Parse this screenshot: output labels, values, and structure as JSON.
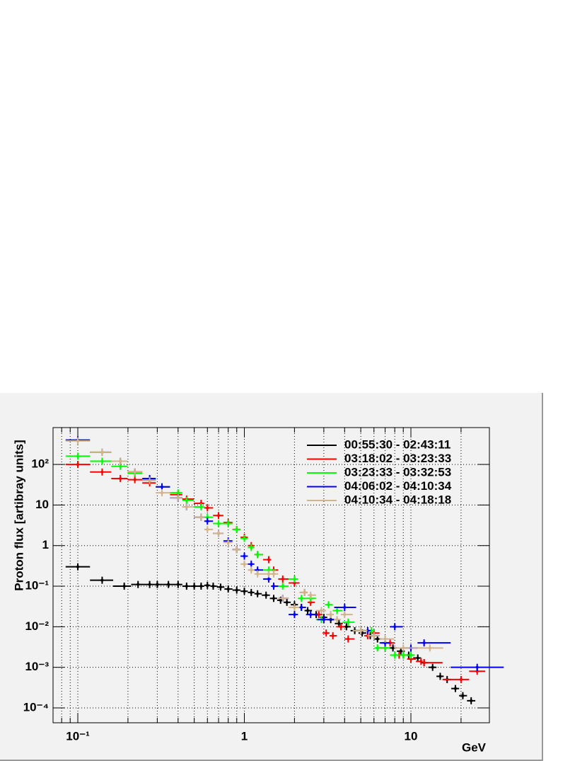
{
  "chart_data": {
    "type": "errorbar",
    "xlabel": "GeV",
    "ylabel": "Proton flux [artibray units]",
    "xscale": "log",
    "yscale": "log",
    "xlim": [
      0.071,
      29.6
    ],
    "ylim": [
      4.3e-05,
      810
    ],
    "xticks": [
      {
        "value": 0.1,
        "label": "10⁻¹"
      },
      1,
      10
    ],
    "xticks_minor": [
      0.08,
      0.09,
      0.2,
      0.3,
      0.4,
      0.5,
      0.6,
      0.7,
      0.8,
      0.9,
      2,
      3,
      4,
      5,
      6,
      7,
      8,
      9,
      20
    ],
    "yticks": [
      {
        "value": 0.0001,
        "label": "10⁻⁴"
      },
      {
        "value": 0.001,
        "label": "10⁻³"
      },
      {
        "value": 0.01,
        "label": "10⁻²"
      },
      {
        "value": 0.1,
        "label": "10⁻¹"
      },
      1,
      10,
      {
        "value": 100,
        "label": "10²"
      }
    ],
    "grid": true,
    "legend": "upper right",
    "series": [
      {
        "name": "00:55:30 - 02:43:11",
        "color": "#000000",
        "x": [
          0.1,
          0.14,
          0.19,
          0.23,
          0.27,
          0.3,
          0.35,
          0.4,
          0.45,
          0.5,
          0.55,
          0.6,
          0.65,
          0.72,
          0.8,
          0.9,
          1.0,
          1.1,
          1.2,
          1.35,
          1.5,
          1.65,
          1.8,
          2.0,
          2.2,
          2.4,
          2.7,
          3.0,
          3.3,
          3.7,
          4.1,
          4.6,
          5.1,
          5.7,
          6.3,
          7,
          7.8,
          8.7,
          9.7,
          11,
          12,
          13.5,
          15,
          16.5,
          18.5,
          20.5,
          23
        ],
        "values": [
          0.3,
          0.14,
          0.1,
          0.11,
          0.11,
          0.11,
          0.11,
          0.11,
          0.1,
          0.1,
          0.1,
          0.105,
          0.1,
          0.095,
          0.085,
          0.08,
          0.075,
          0.07,
          0.065,
          0.06,
          0.05,
          0.045,
          0.04,
          0.035,
          0.03,
          0.025,
          0.02,
          0.017,
          0.015,
          0.012,
          0.01,
          0.008,
          0.007,
          0.006,
          0.005,
          0.004,
          0.003,
          0.0025,
          0.002,
          0.0017,
          0.0013,
          0.001,
          0.0006,
          0.0005,
          0.0003,
          0.0002,
          0.00015
        ]
      },
      {
        "name": "03:18:02 - 03:23:33",
        "color": "#ff0000",
        "x": [
          0.1,
          0.14,
          0.18,
          0.22,
          0.27,
          0.32,
          0.4,
          0.45,
          0.55,
          0.6,
          0.7,
          0.8,
          0.9,
          1,
          1.1,
          1.2,
          1.4,
          1.5,
          1.7,
          2.0,
          2.3,
          2.5,
          2.8,
          3.1,
          3.4,
          3.8,
          4.2,
          5,
          5.5,
          6,
          7,
          7.5,
          8.5,
          9,
          10,
          11.5,
          12,
          20,
          25
        ],
        "values": [
          100,
          65,
          45,
          42,
          35,
          28,
          18,
          14,
          11,
          8.5,
          5.5,
          3.7,
          2.5,
          1.6,
          1.0,
          0.6,
          0.45,
          0.25,
          0.15,
          0.12,
          0.07,
          0.04,
          0.02,
          0.007,
          0.006,
          0.01,
          0.005,
          0.008,
          0.006,
          0.007,
          0.003,
          0.004,
          0.002,
          0.002,
          0.0016,
          0.0014,
          0.0013,
          0.0005,
          0.0008
        ]
      },
      {
        "name": "03:23:33 - 03:32:53",
        "color": "#00ff00",
        "x": [
          0.1,
          0.14,
          0.18,
          0.22,
          0.27,
          0.32,
          0.4,
          0.45,
          0.55,
          0.6,
          0.7,
          0.8,
          0.9,
          1,
          1.1,
          1.2,
          1.4,
          1.7,
          2.0,
          2.2,
          2.5,
          2.9,
          3.2,
          3.6,
          4.2,
          5,
          5.8,
          6.3,
          7,
          8,
          9,
          10
        ],
        "values": [
          160,
          120,
          90,
          60,
          42,
          28,
          20,
          13,
          9,
          5,
          3.5,
          3.5,
          2.5,
          1.5,
          0.9,
          0.6,
          0.25,
          0.1,
          0.15,
          0.05,
          0.05,
          0.015,
          0.035,
          0.025,
          0.013,
          0.008,
          0.008,
          0.003,
          0.003,
          0.002,
          0.002,
          0.002
        ]
      },
      {
        "name": "04:06:02 - 04:10:34",
        "color": "#0000ff",
        "x": [
          0.1,
          0.14,
          0.18,
          0.22,
          0.27,
          0.32,
          0.4,
          0.45,
          0.55,
          0.6,
          0.7,
          0.8,
          0.9,
          1,
          1.1,
          1.2,
          1.4,
          1.5,
          1.7,
          2,
          2.2,
          2.5,
          3,
          4,
          5.5,
          6,
          7,
          8,
          10,
          12,
          25
        ],
        "values": [
          400,
          200,
          120,
          65,
          45,
          28,
          15,
          9,
          5,
          4,
          2,
          1.3,
          0.8,
          0.55,
          0.35,
          0.25,
          0.15,
          0.1,
          0.05,
          0.02,
          0.03,
          0.02,
          0.015,
          0.03,
          0.008,
          0.006,
          0.004,
          0.01,
          0.003,
          0.004,
          0.001
        ]
      },
      {
        "name": "04:10:34 - 04:18:18",
        "color": "#d2b48c",
        "x": [
          0.1,
          0.14,
          0.18,
          0.22,
          0.27,
          0.32,
          0.4,
          0.45,
          0.55,
          0.6,
          0.7,
          0.8,
          0.9,
          1,
          1.1,
          1.2,
          1.4,
          1.5,
          1.7,
          2,
          2.3,
          2.5,
          2.9,
          3.3,
          3.6,
          4,
          5,
          6,
          7,
          9,
          13
        ],
        "values": [
          380,
          200,
          120,
          65,
          40,
          20,
          15,
          9,
          5,
          2.5,
          2,
          1.2,
          0.8,
          0.35,
          0.25,
          0.2,
          0.2,
          0.2,
          0.05,
          0.03,
          0.07,
          0.06,
          0.025,
          0.02,
          0.015,
          0.02,
          0.008,
          0.006,
          0.005,
          0.003,
          0.003
        ]
      }
    ]
  }
}
